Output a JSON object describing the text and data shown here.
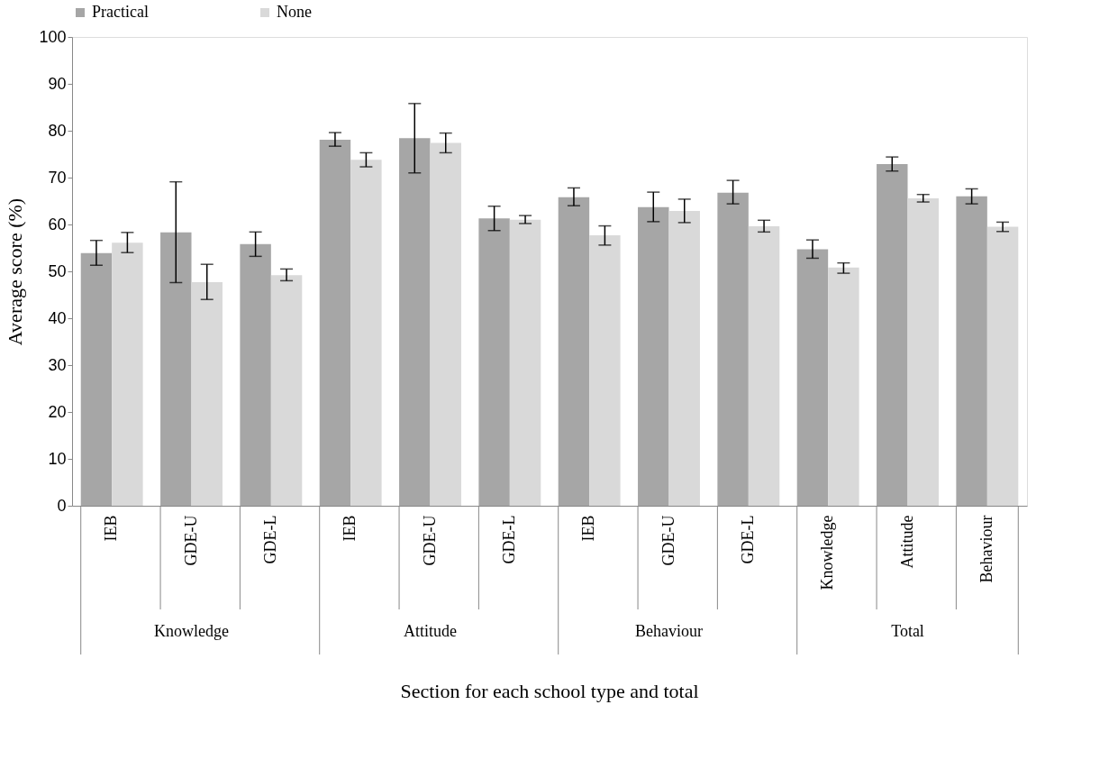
{
  "chart_data": {
    "type": "bar",
    "categories": [
      "IEB",
      "GDE-U",
      "GDE-L",
      "IEB",
      "GDE-U",
      "GDE-L",
      "IEB",
      "GDE-U",
      "GDE-L",
      "Knowledge",
      "Attitude",
      "Behaviour"
    ],
    "series": [
      {
        "name": "Practical",
        "color": "#a6a6a6",
        "values": [
          53.9,
          58.3,
          55.8,
          78.1,
          78.4,
          61.3,
          65.8,
          63.7,
          66.8,
          54.7,
          72.9,
          66.0
        ],
        "errors": [
          [
            51.3,
            56.6
          ],
          [
            47.6,
            69.1
          ],
          [
            53.2,
            58.4
          ],
          [
            76.7,
            79.6
          ],
          [
            71.0,
            85.8
          ],
          [
            58.7,
            63.9
          ],
          [
            64.0,
            67.8
          ],
          [
            60.6,
            66.9
          ],
          [
            64.4,
            69.4
          ],
          [
            52.8,
            56.7
          ],
          [
            71.4,
            74.4
          ],
          [
            64.4,
            67.6
          ]
        ]
      },
      {
        "name": "None",
        "color": "#d9d9d9",
        "values": [
          56.1,
          47.7,
          49.2,
          73.8,
          77.4,
          61.0,
          57.7,
          62.9,
          59.6,
          50.8,
          65.6,
          59.5
        ],
        "errors": [
          [
            54.0,
            58.3
          ],
          [
            44.0,
            51.5
          ],
          [
            48.0,
            50.5
          ],
          [
            72.3,
            75.3
          ],
          [
            75.3,
            79.5
          ],
          [
            60.2,
            61.9
          ],
          [
            55.6,
            59.7
          ],
          [
            60.4,
            65.4
          ],
          [
            58.4,
            60.9
          ],
          [
            49.6,
            51.8
          ],
          [
            64.8,
            66.4
          ],
          [
            58.5,
            60.5
          ]
        ]
      }
    ],
    "annotations": [
      "Knowledge",
      "Attitude",
      "Behaviour",
      "Total"
    ],
    "xlabel": "Section for each school type and total",
    "ylabel": "Average score (%)",
    "ylim": [
      0,
      100
    ],
    "yticks": [
      0,
      10,
      20,
      30,
      40,
      50,
      60,
      70,
      80,
      90,
      100
    ],
    "grid": false,
    "legend": "top"
  }
}
